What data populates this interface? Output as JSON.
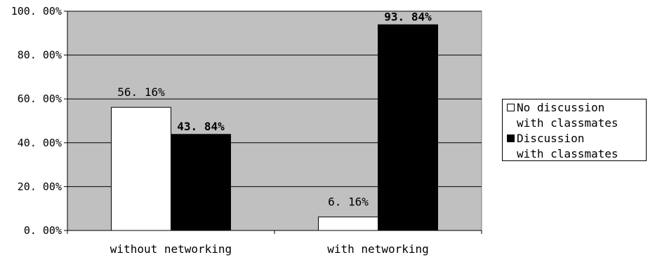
{
  "chart_data": {
    "type": "bar",
    "categories": [
      "without networking",
      "with networking"
    ],
    "series": [
      {
        "name": "No discussion\nwith classmates",
        "values": [
          56.16,
          6.16
        ],
        "color": "#ffffff"
      },
      {
        "name": "Discussion\nwith classmates",
        "values": [
          43.84,
          93.84
        ],
        "color": "#000000"
      }
    ],
    "data_labels": [
      [
        "56.16%",
        "6.16%"
      ],
      [
        "43.84%",
        "93.84%"
      ]
    ],
    "y_ticks": [
      "0.00%",
      "20.00%",
      "40.00%",
      "60.00%",
      "80.00%",
      "100.00%"
    ],
    "ylim": [
      0,
      100
    ],
    "plot_background": "#c0c0c0",
    "grid": true,
    "legend_position": "right"
  }
}
